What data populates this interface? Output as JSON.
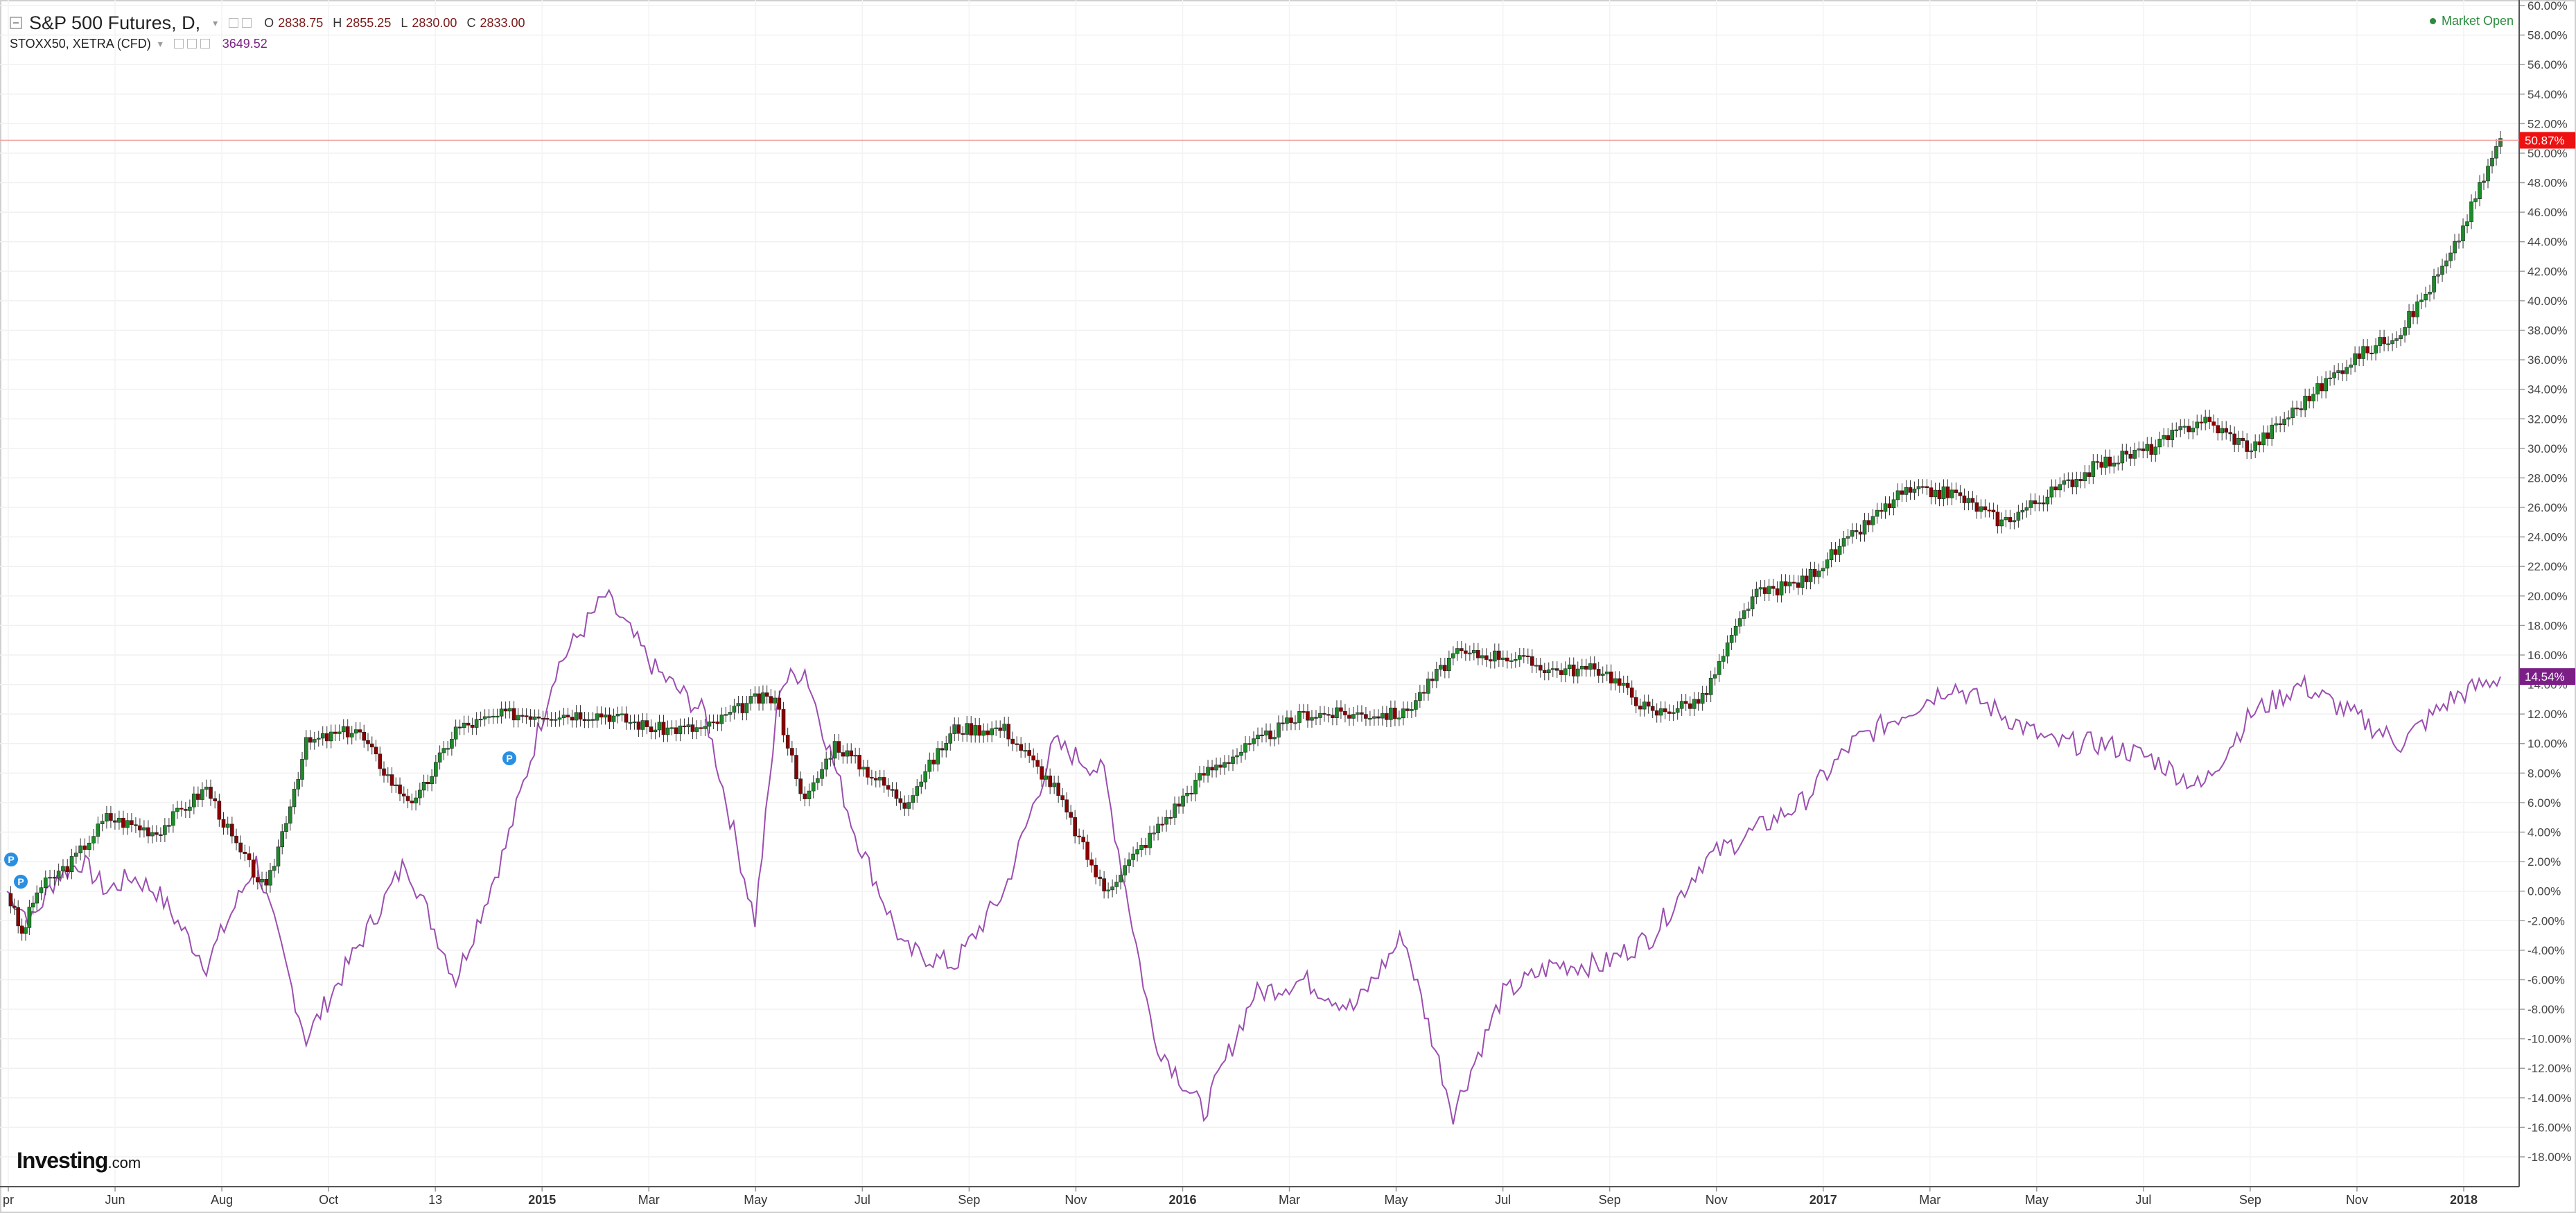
{
  "header": {
    "main_symbol": "S&P 500 Futures, D,",
    "ohlc": [
      {
        "k": "O",
        "v": "2838.75"
      },
      {
        "k": "H",
        "v": "2855.25"
      },
      {
        "k": "L",
        "v": "2830.00"
      },
      {
        "k": "C",
        "v": "2833.00"
      }
    ],
    "compare_symbol": "STOXX50, XETRA (CFD)",
    "compare_value": "3649.52",
    "market_status": "Market Open"
  },
  "logo": {
    "main": "Investing",
    "suffix": ".com"
  },
  "colors": {
    "up": "#1e8a2a",
    "down": "#8b0000",
    "compare": "#9b4fb0",
    "price_label": "#ee1111",
    "compare_label": "#7b1f87"
  },
  "chart_data": {
    "type": "line",
    "y_unit": "%",
    "ylim": [
      -20,
      60
    ],
    "y_ticks": [
      "60.00%",
      "58.00%",
      "56.00%",
      "54.00%",
      "52.00%",
      "50.00%",
      "48.00%",
      "46.00%",
      "44.00%",
      "42.00%",
      "40.00%",
      "38.00%",
      "36.00%",
      "34.00%",
      "32.00%",
      "30.00%",
      "28.00%",
      "26.00%",
      "24.00%",
      "22.00%",
      "20.00%",
      "18.00%",
      "16.00%",
      "14.00%",
      "12.00%",
      "10.00%",
      "8.00%",
      "6.00%",
      "4.00%",
      "2.00%",
      "0.00%",
      "-2.00%",
      "-4.00%",
      "-6.00%",
      "-8.00%",
      "-10.00%",
      "-12.00%",
      "-14.00%",
      "-16.00%",
      "-18.00%"
    ],
    "x_ticks": [
      "pr",
      "Jun",
      "Aug",
      "Oct",
      "13",
      "2015",
      "Mar",
      "May",
      "Jul",
      "Sep",
      "Nov",
      "2016",
      "Mar",
      "May",
      "Jul",
      "Sep",
      "Nov",
      "2017",
      "Mar",
      "May",
      "Jul",
      "Sep",
      "Nov",
      "2018"
    ],
    "x_ticks_bold": [
      "2015",
      "2016",
      "2017",
      "2018"
    ],
    "last_values": {
      "S&P 500 Futures": "50.87%",
      "STOXX50": "14.54%"
    },
    "grid": true,
    "series": [
      {
        "name": "S&P 500 Futures",
        "style": "candlestick",
        "points": [
          [
            0,
            0
          ],
          [
            0.3,
            -3
          ],
          [
            0.6,
            0
          ],
          [
            1.3,
            2
          ],
          [
            2,
            5
          ],
          [
            3,
            4
          ],
          [
            4,
            7
          ],
          [
            4.6,
            3
          ],
          [
            5.2,
            0
          ],
          [
            6,
            10
          ],
          [
            7,
            11
          ],
          [
            7.8,
            7
          ],
          [
            8.2,
            6
          ],
          [
            9,
            11
          ],
          [
            10,
            12
          ],
          [
            11,
            12
          ],
          [
            12,
            12
          ],
          [
            13,
            11
          ],
          [
            14,
            11
          ],
          [
            15,
            13
          ],
          [
            15.4,
            13
          ],
          [
            16,
            6
          ],
          [
            16.6,
            10
          ],
          [
            18,
            6
          ],
          [
            19,
            11
          ],
          [
            20,
            11
          ],
          [
            21,
            7
          ],
          [
            22,
            0
          ],
          [
            23,
            4
          ],
          [
            24,
            8
          ],
          [
            25,
            10
          ],
          [
            26,
            12
          ],
          [
            27,
            12
          ],
          [
            28,
            12
          ],
          [
            29,
            16
          ],
          [
            30,
            16
          ],
          [
            31,
            15
          ],
          [
            32,
            15
          ],
          [
            33,
            12
          ],
          [
            34,
            13
          ],
          [
            35,
            20
          ],
          [
            36,
            21
          ],
          [
            37,
            24
          ],
          [
            38,
            27
          ],
          [
            39,
            27
          ],
          [
            40,
            25
          ],
          [
            41,
            27
          ],
          [
            42,
            29
          ],
          [
            43,
            30
          ],
          [
            44,
            32
          ],
          [
            45,
            30
          ],
          [
            46,
            33
          ],
          [
            47,
            36
          ],
          [
            48,
            38
          ],
          [
            49,
            43
          ],
          [
            50,
            51
          ]
        ]
      },
      {
        "name": "STOXX50",
        "style": "line",
        "points": [
          [
            0,
            0
          ],
          [
            0.5,
            -2
          ],
          [
            1,
            1
          ],
          [
            1.5,
            2
          ],
          [
            2,
            0
          ],
          [
            2.5,
            1
          ],
          [
            3,
            0
          ],
          [
            4,
            -5
          ],
          [
            5,
            2
          ],
          [
            6,
            -10
          ],
          [
            7,
            -4
          ],
          [
            8,
            2
          ],
          [
            9,
            -6
          ],
          [
            10,
            3
          ],
          [
            11,
            15
          ],
          [
            12,
            20
          ],
          [
            13,
            15
          ],
          [
            14,
            12
          ],
          [
            15,
            -2
          ],
          [
            15.5,
            14
          ],
          [
            16,
            15
          ],
          [
            17,
            4
          ],
          [
            18,
            -4
          ],
          [
            19,
            -5
          ],
          [
            20,
            0
          ],
          [
            21,
            10
          ],
          [
            22,
            8
          ],
          [
            23,
            -10
          ],
          [
            24,
            -15
          ],
          [
            25,
            -7
          ],
          [
            26,
            -6
          ],
          [
            27,
            -8
          ],
          [
            28,
            -3
          ],
          [
            29,
            -15
          ],
          [
            30,
            -7
          ],
          [
            31,
            -5
          ],
          [
            32,
            -5
          ],
          [
            33,
            -3
          ],
          [
            34,
            2
          ],
          [
            35,
            4
          ],
          [
            36,
            6
          ],
          [
            37,
            10
          ],
          [
            38,
            12
          ],
          [
            39,
            14
          ],
          [
            40,
            12
          ],
          [
            41,
            10
          ],
          [
            42,
            10
          ],
          [
            43,
            9
          ],
          [
            44,
            7
          ],
          [
            45,
            12
          ],
          [
            46,
            14
          ],
          [
            47,
            12
          ],
          [
            48,
            10
          ],
          [
            49,
            13
          ],
          [
            50,
            14.54
          ]
        ]
      }
    ],
    "markers": [
      "P",
      "P",
      "P"
    ]
  }
}
